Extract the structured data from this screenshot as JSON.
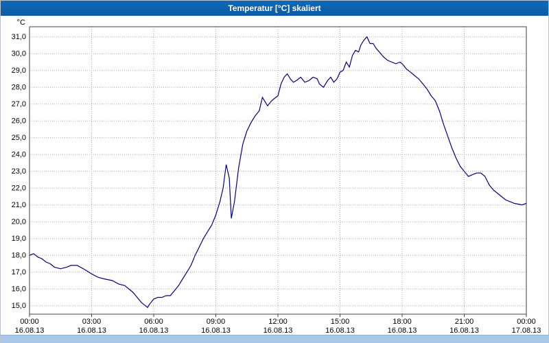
{
  "window": {
    "title": "Temperatur [°C] skaliert"
  },
  "colors": {
    "titlebar": "#0a5ca8",
    "line": "#000080",
    "grid": "#a8a8a8",
    "scrollbar": "#a9c7e7"
  },
  "chart_data": {
    "type": "line",
    "title": "Temperatur [°C] skaliert",
    "unit_label": "°C",
    "line_color": "#000080",
    "grid": true,
    "x_range_hours": [
      0,
      24
    ],
    "ylim": [
      14.5,
      31.6
    ],
    "y_ticks": [
      {
        "value": 31,
        "label": "31,0"
      },
      {
        "value": 30,
        "label": "30,0"
      },
      {
        "value": 29,
        "label": "29,0"
      },
      {
        "value": 28,
        "label": "28,0"
      },
      {
        "value": 27,
        "label": "27,0"
      },
      {
        "value": 26,
        "label": "26,0"
      },
      {
        "value": 25,
        "label": "25,0"
      },
      {
        "value": 24,
        "label": "24,0"
      },
      {
        "value": 23,
        "label": "23,0"
      },
      {
        "value": 22,
        "label": "22,0"
      },
      {
        "value": 21,
        "label": "21,0"
      },
      {
        "value": 20,
        "label": "20,0"
      },
      {
        "value": 19,
        "label": "19,0"
      },
      {
        "value": 18,
        "label": "18,0"
      },
      {
        "value": 17,
        "label": "17,0"
      },
      {
        "value": 16,
        "label": "16,0"
      },
      {
        "value": 15,
        "label": "15,0"
      }
    ],
    "x_ticks": [
      {
        "hour": 0,
        "time": "00:00",
        "date": "16.08.13"
      },
      {
        "hour": 3,
        "time": "03:00",
        "date": "16.08.13"
      },
      {
        "hour": 6,
        "time": "06:00",
        "date": "16.08.13"
      },
      {
        "hour": 9,
        "time": "09:00",
        "date": "16.08.13"
      },
      {
        "hour": 12,
        "time": "12:00",
        "date": "16.08.13"
      },
      {
        "hour": 15,
        "time": "15:00",
        "date": "16.08.13"
      },
      {
        "hour": 18,
        "time": "18:00",
        "date": "16.08.13"
      },
      {
        "hour": 21,
        "time": "21:00",
        "date": "16.08.13"
      },
      {
        "hour": 24,
        "time": "00:00",
        "date": "17.08.13"
      }
    ],
    "series": [
      {
        "name": "Temperatur",
        "points": [
          [
            0,
            18.0
          ],
          [
            0.2,
            18.1
          ],
          [
            0.4,
            17.9
          ],
          [
            0.6,
            17.8
          ],
          [
            0.8,
            17.6
          ],
          [
            1.0,
            17.5
          ],
          [
            1.2,
            17.3
          ],
          [
            1.5,
            17.2
          ],
          [
            1.8,
            17.3
          ],
          [
            2.0,
            17.4
          ],
          [
            2.3,
            17.4
          ],
          [
            2.6,
            17.2
          ],
          [
            3.0,
            16.9
          ],
          [
            3.3,
            16.7
          ],
          [
            3.6,
            16.6
          ],
          [
            4.0,
            16.5
          ],
          [
            4.3,
            16.3
          ],
          [
            4.6,
            16.2
          ],
          [
            5.0,
            15.8
          ],
          [
            5.2,
            15.5
          ],
          [
            5.4,
            15.2
          ],
          [
            5.6,
            15.0
          ],
          [
            5.7,
            14.9
          ],
          [
            5.8,
            15.1
          ],
          [
            6.0,
            15.4
          ],
          [
            6.2,
            15.5
          ],
          [
            6.4,
            15.5
          ],
          [
            6.6,
            15.6
          ],
          [
            6.8,
            15.6
          ],
          [
            7.0,
            15.9
          ],
          [
            7.2,
            16.2
          ],
          [
            7.4,
            16.6
          ],
          [
            7.6,
            17.0
          ],
          [
            7.8,
            17.4
          ],
          [
            8.0,
            18.0
          ],
          [
            8.2,
            18.5
          ],
          [
            8.4,
            19.0
          ],
          [
            8.6,
            19.4
          ],
          [
            8.8,
            19.8
          ],
          [
            9.0,
            20.4
          ],
          [
            9.2,
            21.2
          ],
          [
            9.35,
            22.0
          ],
          [
            9.5,
            23.4
          ],
          [
            9.65,
            22.6
          ],
          [
            9.75,
            20.2
          ],
          [
            9.9,
            21.2
          ],
          [
            10.1,
            23.2
          ],
          [
            10.3,
            24.6
          ],
          [
            10.5,
            25.4
          ],
          [
            10.7,
            25.9
          ],
          [
            10.9,
            26.3
          ],
          [
            11.1,
            26.6
          ],
          [
            11.25,
            27.4
          ],
          [
            11.4,
            27.1
          ],
          [
            11.5,
            26.9
          ],
          [
            11.7,
            27.2
          ],
          [
            11.9,
            27.4
          ],
          [
            12.0,
            27.5
          ],
          [
            12.15,
            28.2
          ],
          [
            12.3,
            28.6
          ],
          [
            12.45,
            28.8
          ],
          [
            12.6,
            28.5
          ],
          [
            12.75,
            28.3
          ],
          [
            12.9,
            28.4
          ],
          [
            13.1,
            28.6
          ],
          [
            13.3,
            28.3
          ],
          [
            13.5,
            28.4
          ],
          [
            13.7,
            28.6
          ],
          [
            13.9,
            28.5
          ],
          [
            14.0,
            28.2
          ],
          [
            14.2,
            28.0
          ],
          [
            14.4,
            28.4
          ],
          [
            14.55,
            28.6
          ],
          [
            14.7,
            28.3
          ],
          [
            14.85,
            28.5
          ],
          [
            15.0,
            28.9
          ],
          [
            15.15,
            29.0
          ],
          [
            15.3,
            29.5
          ],
          [
            15.45,
            29.2
          ],
          [
            15.6,
            29.9
          ],
          [
            15.75,
            30.2
          ],
          [
            15.9,
            30.1
          ],
          [
            16.0,
            30.5
          ],
          [
            16.15,
            30.8
          ],
          [
            16.3,
            31.0
          ],
          [
            16.45,
            30.6
          ],
          [
            16.6,
            30.6
          ],
          [
            16.75,
            30.3
          ],
          [
            16.9,
            30.1
          ],
          [
            17.1,
            29.8
          ],
          [
            17.3,
            29.6
          ],
          [
            17.5,
            29.5
          ],
          [
            17.7,
            29.4
          ],
          [
            17.9,
            29.5
          ],
          [
            18.0,
            29.4
          ],
          [
            18.2,
            29.1
          ],
          [
            18.4,
            28.9
          ],
          [
            18.6,
            28.7
          ],
          [
            18.8,
            28.5
          ],
          [
            19.0,
            28.2
          ],
          [
            19.2,
            27.9
          ],
          [
            19.4,
            27.5
          ],
          [
            19.6,
            27.2
          ],
          [
            19.8,
            26.6
          ],
          [
            20.0,
            25.8
          ],
          [
            20.2,
            25.1
          ],
          [
            20.4,
            24.4
          ],
          [
            20.6,
            23.8
          ],
          [
            20.8,
            23.3
          ],
          [
            21.0,
            23.0
          ],
          [
            21.2,
            22.7
          ],
          [
            21.4,
            22.8
          ],
          [
            21.6,
            22.9
          ],
          [
            21.8,
            22.9
          ],
          [
            22.0,
            22.7
          ],
          [
            22.2,
            22.2
          ],
          [
            22.4,
            21.9
          ],
          [
            22.6,
            21.7
          ],
          [
            22.8,
            21.5
          ],
          [
            23.0,
            21.3
          ],
          [
            23.2,
            21.2
          ],
          [
            23.4,
            21.1
          ],
          [
            23.6,
            21.05
          ],
          [
            23.8,
            21.0
          ],
          [
            24.0,
            21.1
          ]
        ]
      }
    ],
    "legend": "none"
  }
}
